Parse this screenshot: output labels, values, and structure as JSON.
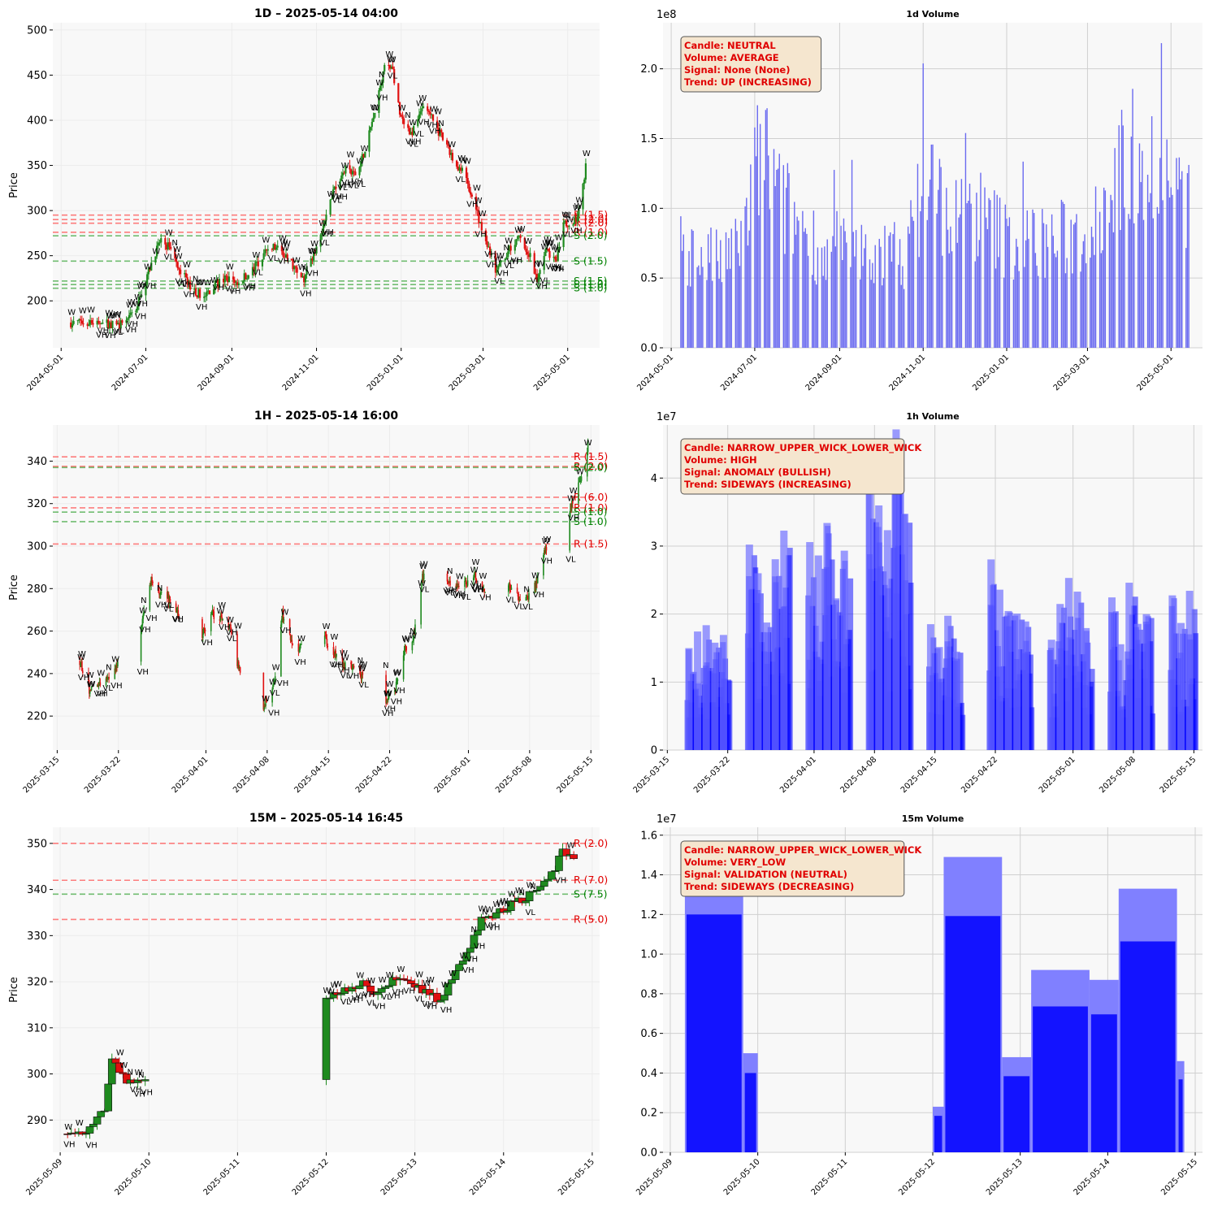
{
  "chart_data": [
    {
      "id": "price_1d",
      "type": "candlestick",
      "title": "1D – 2025-05-14 04:00",
      "ylabel": "Price",
      "x_domain": [
        "2024-04-25",
        "2025-05-24"
      ],
      "ylim": [
        148,
        508
      ],
      "yticks": [
        200,
        250,
        300,
        350,
        400,
        450,
        500
      ],
      "xticks": [
        "2024-05-01",
        "2024-07-01",
        "2024-09-01",
        "2024-11-01",
        "2025-01-01",
        "2025-03-01",
        "2025-05-01"
      ],
      "grid": true,
      "close_path": [
        [
          "2024-05-08",
          176
        ],
        [
          "2024-05-20",
          177
        ],
        [
          "2024-06-01",
          176
        ],
        [
          "2024-06-10",
          172
        ],
        [
          "2024-06-20",
          184
        ],
        [
          "2024-06-28",
          205
        ],
        [
          "2024-07-06",
          248
        ],
        [
          "2024-07-12",
          268
        ],
        [
          "2024-07-20",
          255
        ],
        [
          "2024-07-28",
          228
        ],
        [
          "2024-08-05",
          210
        ],
        [
          "2024-08-12",
          205
        ],
        [
          "2024-08-20",
          218
        ],
        [
          "2024-08-28",
          225
        ],
        [
          "2024-09-05",
          220
        ],
        [
          "2024-09-15",
          233
        ],
        [
          "2024-09-22",
          245
        ],
        [
          "2024-09-28",
          262
        ],
        [
          "2024-10-06",
          255
        ],
        [
          "2024-10-14",
          242
        ],
        [
          "2024-10-22",
          222
        ],
        [
          "2024-10-28",
          245
        ],
        [
          "2024-11-03",
          262
        ],
        [
          "2024-11-08",
          295
        ],
        [
          "2024-11-14",
          325
        ],
        [
          "2024-11-22",
          345
        ],
        [
          "2024-11-30",
          340
        ],
        [
          "2024-12-08",
          378
        ],
        [
          "2024-12-14",
          418
        ],
        [
          "2024-12-20",
          460
        ],
        [
          "2024-12-26",
          455
        ],
        [
          "2024-12-31",
          405
        ],
        [
          "2025-01-08",
          385
        ],
        [
          "2025-01-16",
          415
        ],
        [
          "2025-01-24",
          400
        ],
        [
          "2025-02-01",
          375
        ],
        [
          "2025-02-08",
          355
        ],
        [
          "2025-02-16",
          338
        ],
        [
          "2025-02-24",
          300
        ],
        [
          "2025-03-03",
          268
        ],
        [
          "2025-03-10",
          235
        ],
        [
          "2025-03-16",
          243
        ],
        [
          "2025-03-22",
          262
        ],
        [
          "2025-03-28",
          270
        ],
        [
          "2025-04-04",
          250
        ],
        [
          "2025-04-09",
          220
        ],
        [
          "2025-04-15",
          258
        ],
        [
          "2025-04-22",
          242
        ],
        [
          "2025-04-28",
          285
        ],
        [
          "2025-05-05",
          285
        ],
        [
          "2025-05-10",
          305
        ],
        [
          "2025-05-14",
          347
        ]
      ],
      "resistance": [
        {
          "price": 295,
          "label": "R (1.5)"
        },
        {
          "price": 290,
          "label": "R (2.0)"
        },
        {
          "price": 286,
          "label": "R (2.0)"
        },
        {
          "price": 276,
          "label": "R (1.0)"
        }
      ],
      "support": [
        {
          "price": 272,
          "label": "S (2.0)"
        },
        {
          "price": 244,
          "label": "S (1.5)"
        },
        {
          "price": 222,
          "label": "S (1.5)"
        },
        {
          "price": 218,
          "label": "S (1.0)"
        },
        {
          "price": 214,
          "label": "S (1.0)"
        }
      ]
    },
    {
      "id": "volume_1d",
      "type": "bar",
      "title": "1d Volume",
      "offset_label": "1e8",
      "x_domain": [
        "2024-04-25",
        "2025-05-24"
      ],
      "ylim": [
        0,
        2.33
      ],
      "yticks": [
        "0.0",
        "0.5",
        "1.0",
        "1.5",
        "2.0"
      ],
      "xticks": [
        "2024-05-01",
        "2024-07-01",
        "2024-09-01",
        "2024-11-01",
        "2025-01-01",
        "2025-03-01",
        "2025-05-01"
      ],
      "grid": true,
      "bar_color": "#6a6af0",
      "volume_path": [
        [
          "2024-05-08",
          0.72
        ],
        [
          "2024-06-10",
          0.62
        ],
        [
          "2024-06-25",
          0.9
        ],
        [
          "2024-07-06",
          1.5
        ],
        [
          "2024-07-20",
          1.05
        ],
        [
          "2024-08-05",
          0.9
        ],
        [
          "2024-08-20",
          0.68
        ],
        [
          "2024-09-10",
          0.7
        ],
        [
          "2024-10-01",
          0.68
        ],
        [
          "2024-10-20",
          0.7
        ],
        [
          "2024-11-05",
          1.3
        ],
        [
          "2024-11-20",
          0.92
        ],
        [
          "2024-12-10",
          1.0
        ],
        [
          "2024-12-31",
          0.8
        ],
        [
          "2025-01-20",
          0.78
        ],
        [
          "2025-02-15",
          0.8
        ],
        [
          "2025-03-01",
          0.85
        ],
        [
          "2025-03-20",
          1.2
        ],
        [
          "2025-04-05",
          1.45
        ],
        [
          "2025-04-25",
          1.25
        ],
        [
          "2025-05-14",
          1.0
        ]
      ],
      "annotation": [
        "Candle: NEUTRAL",
        "Volume: AVERAGE",
        "Signal: None (None)",
        "Trend: UP (INCREASING)"
      ]
    },
    {
      "id": "price_1h",
      "type": "candlestick",
      "title": "1H – 2025-05-14 16:00",
      "ylabel": "Price",
      "x_domain": [
        "2025-03-14T12:00",
        "2025-05-16T00:00"
      ],
      "ylim": [
        204,
        357
      ],
      "yticks": [
        220,
        240,
        260,
        280,
        300,
        320,
        340
      ],
      "xticks": [
        "2025-03-15",
        "2025-03-22",
        "2025-04-01",
        "2025-04-08",
        "2025-04-15",
        "2025-04-22",
        "2025-05-01",
        "2025-05-08",
        "2025-05-15"
      ],
      "grid": true,
      "close_path": [
        [
          "2025-03-17T14:00",
          246
        ],
        [
          "2025-03-18T16:00",
          232
        ],
        [
          "2025-03-19T18:00",
          236
        ],
        [
          "2025-03-20T18:00",
          238
        ],
        [
          "2025-03-21T18:00",
          243
        ],
        [
          "2025-03-24T14:00",
          262
        ],
        [
          "2025-03-25T18:00",
          285
        ],
        [
          "2025-03-26T18:00",
          278
        ],
        [
          "2025-03-27T18:00",
          275
        ],
        [
          "2025-03-28T18:00",
          268
        ],
        [
          "2025-03-31T14:00",
          258
        ],
        [
          "2025-04-01T18:00",
          268
        ],
        [
          "2025-04-02T18:00",
          266
        ],
        [
          "2025-04-03T18:00",
          262
        ],
        [
          "2025-04-04T18:00",
          242
        ],
        [
          "2025-04-07T14:00",
          225
        ],
        [
          "2025-04-08T18:00",
          235
        ],
        [
          "2025-04-09T18:00",
          268
        ],
        [
          "2025-04-10T18:00",
          255
        ],
        [
          "2025-04-11T18:00",
          252
        ],
        [
          "2025-04-14T14:00",
          256
        ],
        [
          "2025-04-15T18:00",
          250
        ],
        [
          "2025-04-16T18:00",
          244
        ],
        [
          "2025-04-17T18:00",
          243
        ],
        [
          "2025-04-21T14:00",
          228
        ],
        [
          "2025-04-22T18:00",
          234
        ],
        [
          "2025-04-23T18:00",
          252
        ],
        [
          "2025-04-24T18:00",
          258
        ],
        [
          "2025-04-25T18:00",
          285
        ],
        [
          "2025-04-28T14:00",
          285
        ],
        [
          "2025-04-29T18:00",
          280
        ],
        [
          "2025-04-30T18:00",
          283
        ],
        [
          "2025-05-01T18:00",
          286
        ],
        [
          "2025-05-02T18:00",
          280
        ],
        [
          "2025-05-05T14:00",
          281
        ],
        [
          "2025-05-06T18:00",
          276
        ],
        [
          "2025-05-07T18:00",
          276
        ],
        [
          "2025-05-08T18:00",
          282
        ],
        [
          "2025-05-09T18:00",
          298
        ],
        [
          "2025-05-12T14:00",
          318
        ],
        [
          "2025-05-13T18:00",
          330
        ],
        [
          "2025-05-14T16:00",
          348
        ]
      ],
      "resistance": [
        {
          "price": 342,
          "label": "R (1.5)"
        },
        {
          "price": 337.5,
          "label": "R (2.0)"
        },
        {
          "price": 323,
          "label": "R (6.0)"
        },
        {
          "price": 318,
          "label": "R (1.0)"
        },
        {
          "price": 301,
          "label": "R (1.5)"
        }
      ],
      "support": [
        {
          "price": 337,
          "label": "S (2.0)"
        },
        {
          "price": 316,
          "label": "S (1.0)"
        },
        {
          "price": 311.5,
          "label": "S (1.0)"
        }
      ]
    },
    {
      "id": "volume_1h",
      "type": "bar",
      "title": "1h Volume",
      "offset_label": "1e7",
      "x_domain": [
        "2025-03-14T12:00",
        "2025-05-16T00:00"
      ],
      "ylim": [
        0,
        4.78
      ],
      "yticks": [
        "0",
        "1",
        "2",
        "3",
        "4"
      ],
      "xticks": [
        "2025-03-15",
        "2025-03-22",
        "2025-04-01",
        "2025-04-08",
        "2025-04-15",
        "2025-04-22",
        "2025-05-01",
        "2025-05-08",
        "2025-05-15"
      ],
      "grid": true,
      "bar_color": "#0000ff",
      "sessions": [
        {
          "start": "2025-03-17",
          "days": 5,
          "peak": 2.0
        },
        {
          "start": "2025-03-24",
          "days": 5,
          "peak": 3.1
        },
        {
          "start": "2025-03-31",
          "days": 5,
          "peak": 3.2
        },
        {
          "start": "2025-04-07",
          "days": 5,
          "peak": 4.5
        },
        {
          "start": "2025-04-14",
          "days": 4,
          "peak": 2.0
        },
        {
          "start": "2025-04-21",
          "days": 5,
          "peak": 3.1
        },
        {
          "start": "2025-04-28",
          "days": 5,
          "peak": 2.5
        },
        {
          "start": "2025-05-05",
          "days": 5,
          "peak": 2.4
        },
        {
          "start": "2025-05-12",
          "days": 3,
          "peak": 2.6
        }
      ],
      "annotation": [
        "Candle: NARROW_UPPER_WICK_LOWER_WICK",
        "Volume: HIGH",
        "Signal: ANOMALY (BULLISH)",
        "Trend: SIDEWAYS (INCREASING)"
      ]
    },
    {
      "id": "price_15m",
      "type": "candlestick",
      "title": "15M – 2025-05-14 16:45",
      "ylabel": "Price",
      "x_domain": [
        "2025-05-08T22:00",
        "2025-05-15T02:00"
      ],
      "ylim": [
        283,
        353.5
      ],
      "yticks": [
        290,
        300,
        310,
        320,
        330,
        340,
        350
      ],
      "xticks": [
        "2025-05-09",
        "2025-05-10",
        "2025-05-11",
        "2025-05-12",
        "2025-05-13",
        "2025-05-14",
        "2025-05-15"
      ],
      "grid": true,
      "close_path": [
        [
          "2025-05-09T02:00",
          287
        ],
        [
          "2025-05-09T08:00",
          288
        ],
        [
          "2025-05-09T12:00",
          292
        ],
        [
          "2025-05-09T14:00",
          304
        ],
        [
          "2025-05-09T16:00",
          300
        ],
        [
          "2025-05-09T20:00",
          298
        ],
        [
          "2025-05-10T00:00",
          299
        ],
        [
          "2025-05-12T06:00",
          318
        ],
        [
          "2025-05-12T10:00",
          320
        ],
        [
          "2025-05-12T14:00",
          317
        ],
        [
          "2025-05-12T16:00",
          319
        ],
        [
          "2025-05-12T20:00",
          321
        ],
        [
          "2025-05-13T06:00",
          316
        ],
        [
          "2025-05-13T10:00",
          320
        ],
        [
          "2025-05-13T14:00",
          326
        ],
        [
          "2025-05-13T18:00",
          334
        ],
        [
          "2025-05-13T22:00",
          335
        ],
        [
          "2025-05-14T08:00",
          339
        ],
        [
          "2025-05-14T12:00",
          342
        ],
        [
          "2025-05-14T16:00",
          348
        ],
        [
          "2025-05-14T19:00",
          346
        ]
      ],
      "resistance": [
        {
          "price": 350,
          "label": "R (2.0)"
        },
        {
          "price": 342,
          "label": "R (7.0)"
        },
        {
          "price": 333.5,
          "label": "R (5.0)"
        }
      ],
      "support": [
        {
          "price": 339,
          "label": "S (7.5)"
        }
      ]
    },
    {
      "id": "volume_15m",
      "type": "bar",
      "title": "15m Volume",
      "offset_label": "1e7",
      "x_domain": [
        "2025-05-08T22:00",
        "2025-05-15T02:00"
      ],
      "ylim": [
        0,
        1.64
      ],
      "yticks": [
        "0.0",
        "0.2",
        "0.4",
        "0.6",
        "0.8",
        "1.0",
        "1.2",
        "1.4",
        "1.6"
      ],
      "xticks": [
        "2025-05-09",
        "2025-05-10",
        "2025-05-11",
        "2025-05-12",
        "2025-05-13",
        "2025-05-14",
        "2025-05-15"
      ],
      "grid": true,
      "bar_color": "#0000ff",
      "volume_blocks": [
        {
          "start": "2025-05-09T04:00",
          "end": "2025-05-09T20:00",
          "value": 1.5
        },
        {
          "start": "2025-05-09T20:00",
          "end": "2025-05-10T00:00",
          "value": 0.5
        },
        {
          "start": "2025-05-12T00:00",
          "end": "2025-05-12T03:00",
          "value": 0.23
        },
        {
          "start": "2025-05-12T03:00",
          "end": "2025-05-12T19:00",
          "value": 1.49
        },
        {
          "start": "2025-05-12T19:00",
          "end": "2025-05-13T03:00",
          "value": 0.48
        },
        {
          "start": "2025-05-13T03:00",
          "end": "2025-05-13T19:00",
          "value": 0.92
        },
        {
          "start": "2025-05-13T19:00",
          "end": "2025-05-14T03:00",
          "value": 0.87
        },
        {
          "start": "2025-05-14T03:00",
          "end": "2025-05-14T19:00",
          "value": 1.33
        },
        {
          "start": "2025-05-14T19:00",
          "end": "2025-05-14T21:00",
          "value": 0.46
        }
      ],
      "annotation": [
        "Candle: NARROW_UPPER_WICK_LOWER_WICK",
        "Volume: VERY_LOW",
        "Signal: VALIDATION (NEUTRAL)",
        "Trend: SIDEWAYS (DECREASING)"
      ]
    }
  ]
}
